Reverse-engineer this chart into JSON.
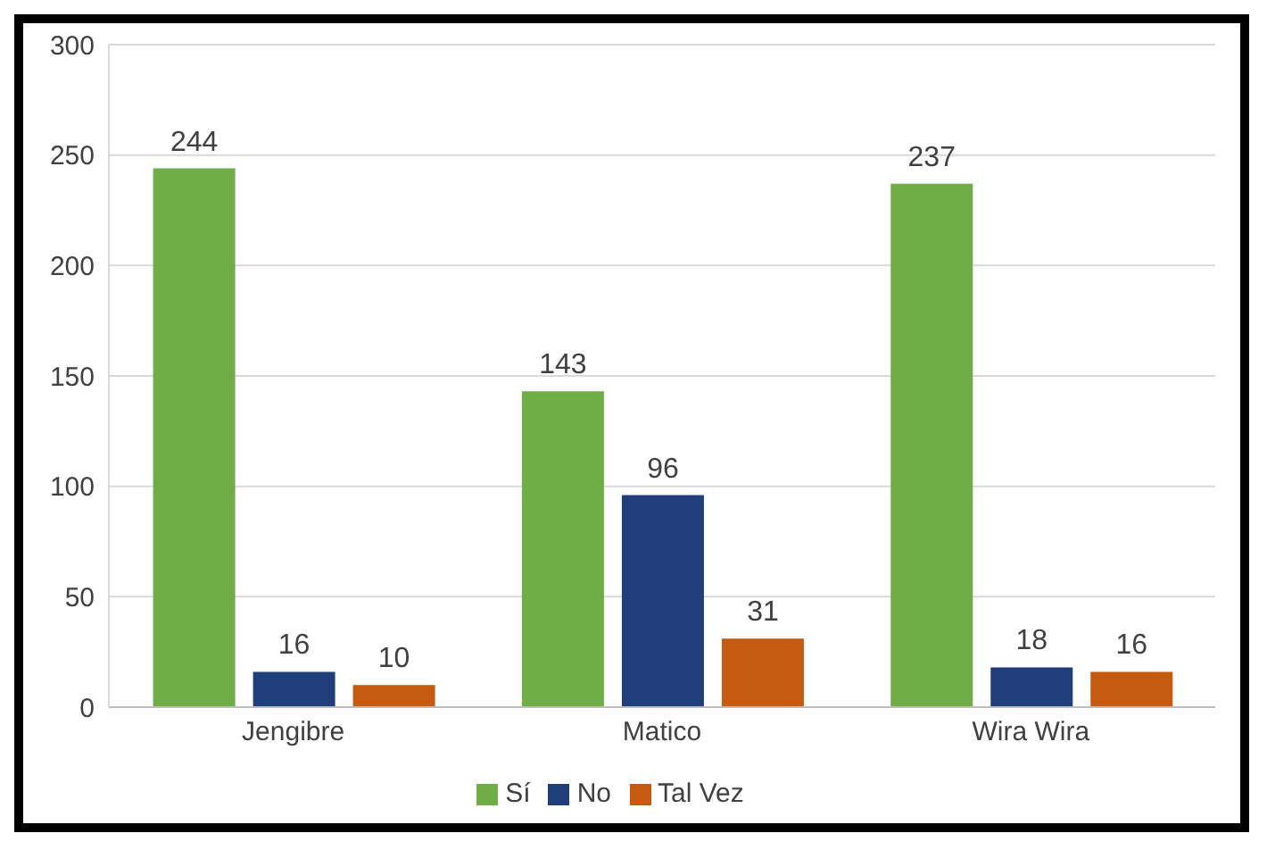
{
  "chart_data": {
    "type": "bar",
    "categories": [
      "Jengibre",
      "Matico",
      "Wira Wira"
    ],
    "series": [
      {
        "name": "Sí",
        "color": "#70ad47",
        "values": [
          244,
          143,
          237
        ]
      },
      {
        "name": "No",
        "color": "#203f7a",
        "values": [
          16,
          96,
          18
        ]
      },
      {
        "name": "Tal Vez",
        "color": "#c55a11",
        "values": [
          10,
          31,
          16
        ]
      }
    ],
    "ylim": [
      0,
      300
    ],
    "yticks": [
      0,
      50,
      100,
      150,
      200,
      250,
      300
    ],
    "grid": "y",
    "legend": "bottom",
    "data_labels": true
  }
}
